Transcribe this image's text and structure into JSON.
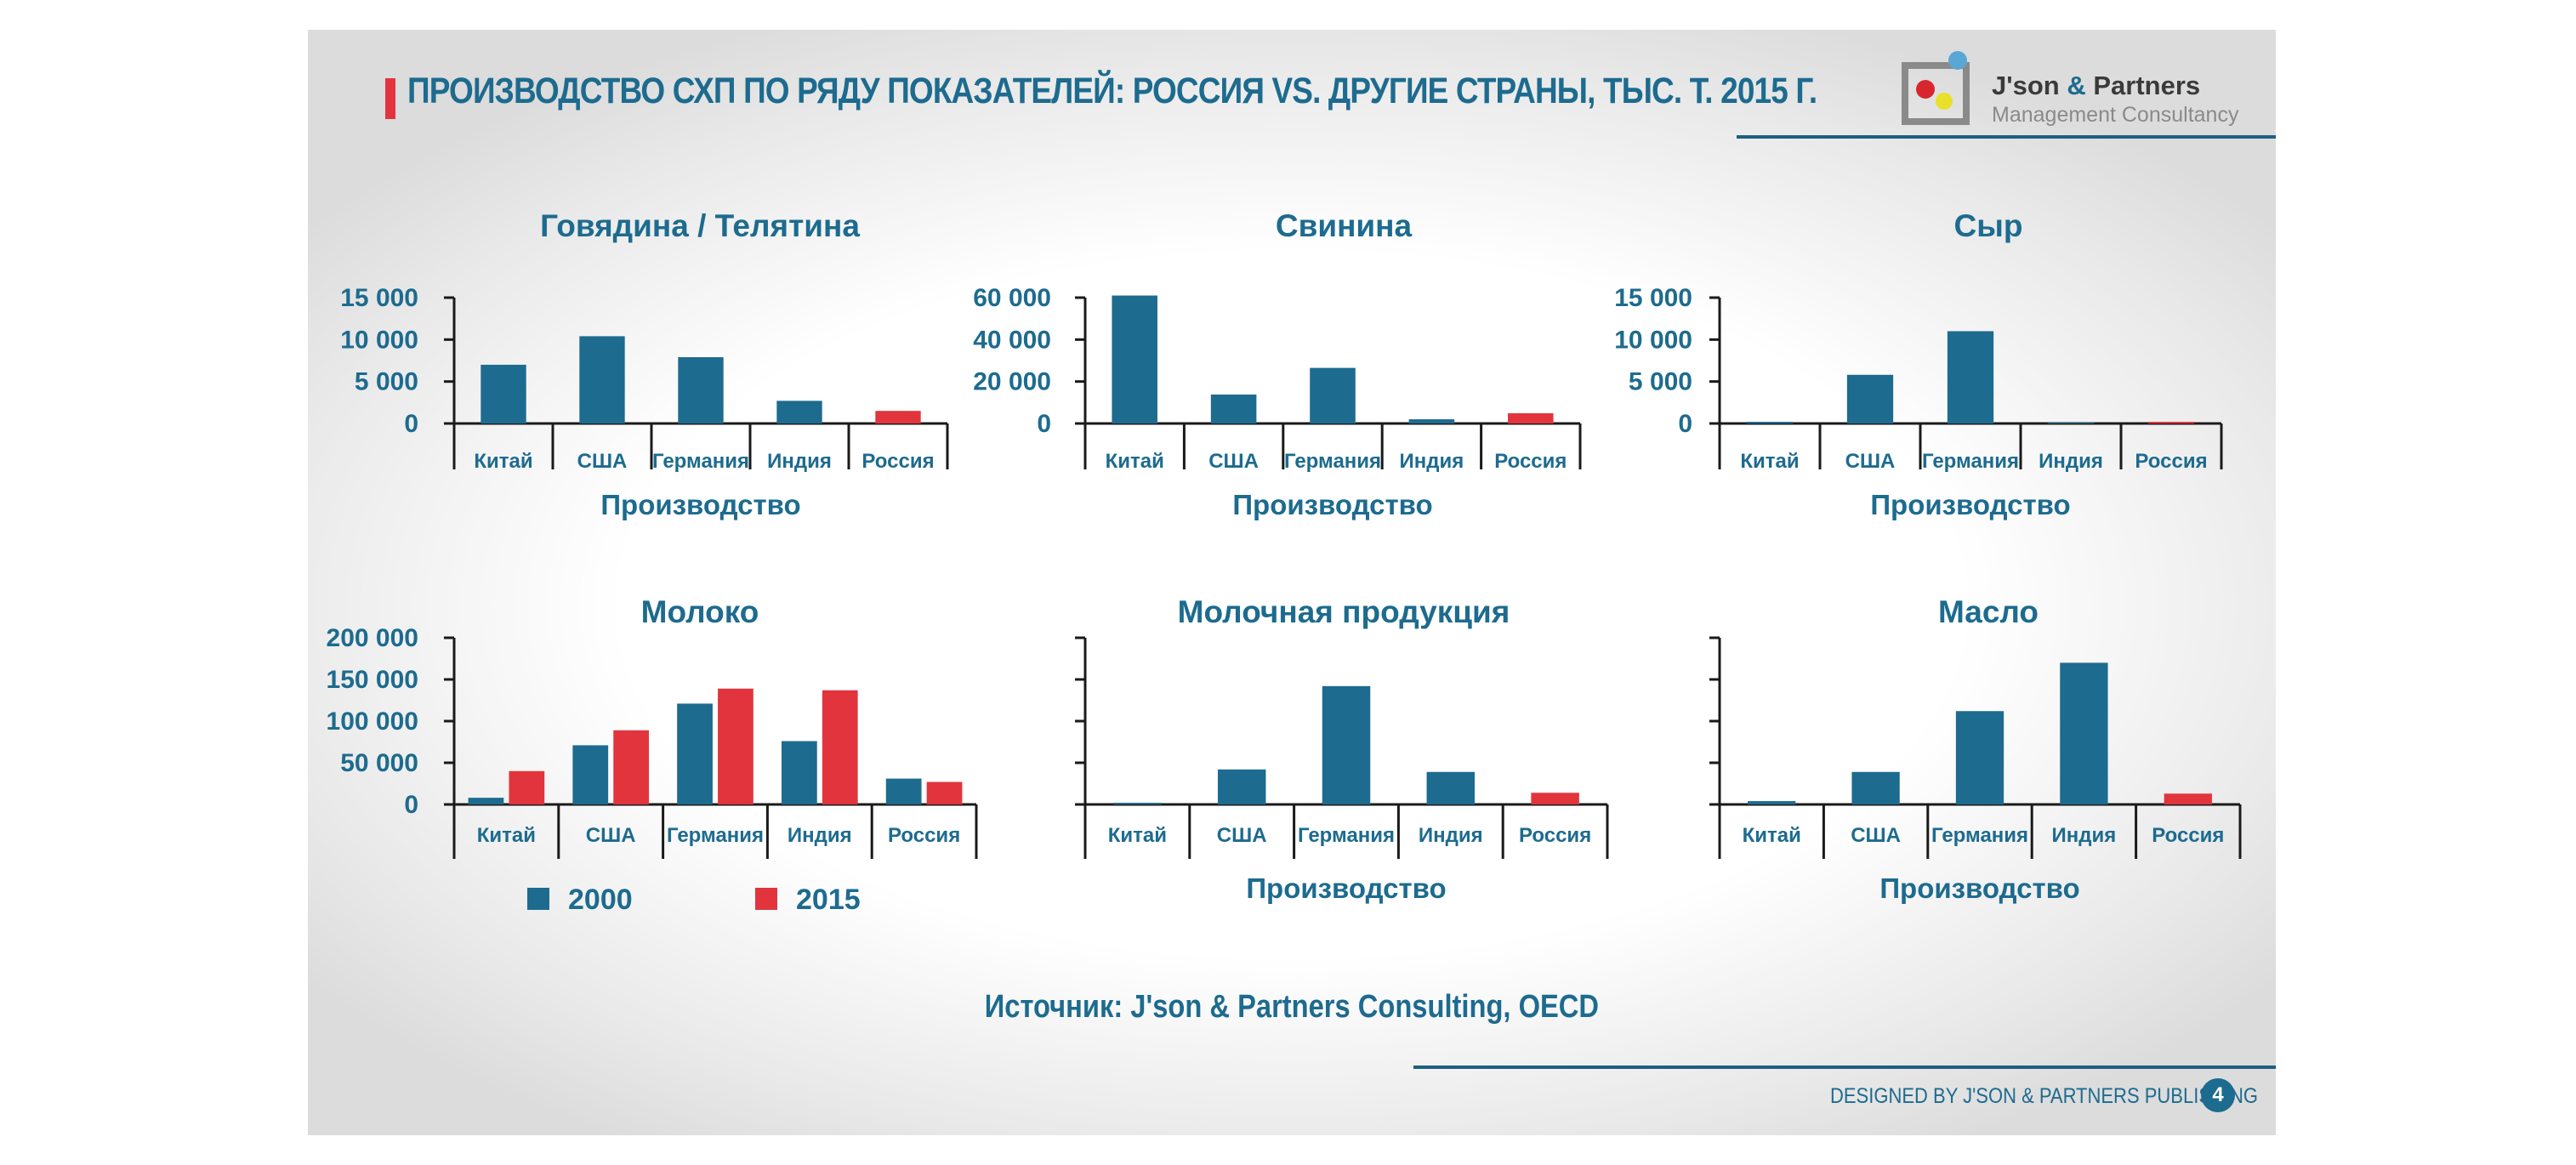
{
  "header": {
    "title": "ПРОИЗВОДСТВО СХП ПО РЯДУ ПОКАЗАТЕЛЕЙ: РОССИЯ VS. ДРУГИЕ СТРАНЫ, ТЫС. Т. 2015 Г.",
    "brand_name": "J'son",
    "brand_amp": "&",
    "brand_partners": "Partners",
    "brand_sub": "Management Consultancy"
  },
  "footer": {
    "source": "Источник: J'son & Partners Consulting, OECD",
    "credit": "DESIGNED BY J'SON & PARTNERS PUBLISHING",
    "page": "4"
  },
  "colors": {
    "s2000": "#1d6b8f",
    "s2015": "#e2343d",
    "axis": "#1a1a1a",
    "text": "#1d6b8f"
  },
  "chart_data": [
    {
      "type": "bar",
      "title": "Говядина / Телятина",
      "xlabel": "Производство",
      "categories": [
        "Китай",
        "США",
        "Германия",
        "Индия",
        "Россия"
      ],
      "series": [
        {
          "name": "2015",
          "values": [
            7000,
            10400,
            7900,
            2700,
            1500
          ]
        }
      ],
      "ylim": [
        0,
        15000
      ],
      "yticks": [
        0,
        5000,
        10000,
        15000
      ],
      "ytick_labels": [
        "0",
        "5 000",
        "10 000",
        "15 000"
      ],
      "highlight": "Россия"
    },
    {
      "type": "bar",
      "title": "Свинина",
      "xlabel": "Производство",
      "categories": [
        "Китай",
        "США",
        "Германия",
        "Индия",
        "Россия"
      ],
      "series": [
        {
          "name": "2015",
          "values": [
            61000,
            13800,
            26500,
            2000,
            4900
          ]
        }
      ],
      "ylim": [
        0,
        60000
      ],
      "yticks": [
        0,
        20000,
        40000,
        60000
      ],
      "ytick_labels": [
        "0",
        "20 000",
        "40 000",
        "60 000"
      ],
      "highlight": "Россия"
    },
    {
      "type": "bar",
      "title": "Сыр",
      "xlabel": "Производство",
      "categories": [
        "Китай",
        "США",
        "Германия",
        "Индия",
        "Россия"
      ],
      "series": [
        {
          "name": "2015",
          "values": [
            200,
            5800,
            11000,
            100,
            200
          ]
        }
      ],
      "ylim": [
        0,
        15000
      ],
      "yticks": [
        0,
        5000,
        10000,
        15000
      ],
      "ytick_labels": [
        "0",
        "5 000",
        "10 000",
        "15 000"
      ],
      "highlight": "Россия"
    },
    {
      "type": "bar",
      "title": "Молоко",
      "xlabel": "",
      "categories": [
        "Китай",
        "США",
        "Германия",
        "Индия",
        "Россия"
      ],
      "series": [
        {
          "name": "2000",
          "values": [
            8000,
            71000,
            121000,
            76000,
            31000
          ]
        },
        {
          "name": "2015",
          "values": [
            40000,
            89000,
            139000,
            137000,
            27000
          ]
        }
      ],
      "ylim": [
        0,
        200000
      ],
      "yticks": [
        0,
        50000,
        100000,
        150000,
        200000
      ],
      "ytick_labels": [
        "0",
        "50 000",
        "100 000",
        "150 000",
        "200 000"
      ],
      "legend": [
        "2000",
        "2015"
      ]
    },
    {
      "type": "bar",
      "title": "Молочная продукция",
      "xlabel": "Производство",
      "categories": [
        "Китай",
        "США",
        "Германия",
        "Индия",
        "Россия"
      ],
      "series": [
        {
          "name": "2015",
          "values": [
            2,
            42,
            142,
            39,
            14
          ]
        }
      ],
      "ylim": [
        0,
        200
      ],
      "yticks": [
        0,
        50,
        100,
        150,
        200
      ],
      "ytick_labels": [
        "",
        "",
        "",
        "",
        ""
      ],
      "highlight": "Россия"
    },
    {
      "type": "bar",
      "title": "Масло",
      "xlabel": "Производство",
      "categories": [
        "Китай",
        "США",
        "Германия",
        "Индия",
        "Россия"
      ],
      "series": [
        {
          "name": "2015",
          "values": [
            4,
            39,
            112,
            170,
            13
          ]
        }
      ],
      "ylim": [
        0,
        200
      ],
      "yticks": [
        0,
        50,
        100,
        150,
        200
      ],
      "ytick_labels": [
        "",
        "",
        "",
        "",
        ""
      ],
      "highlight": "Россия"
    }
  ]
}
